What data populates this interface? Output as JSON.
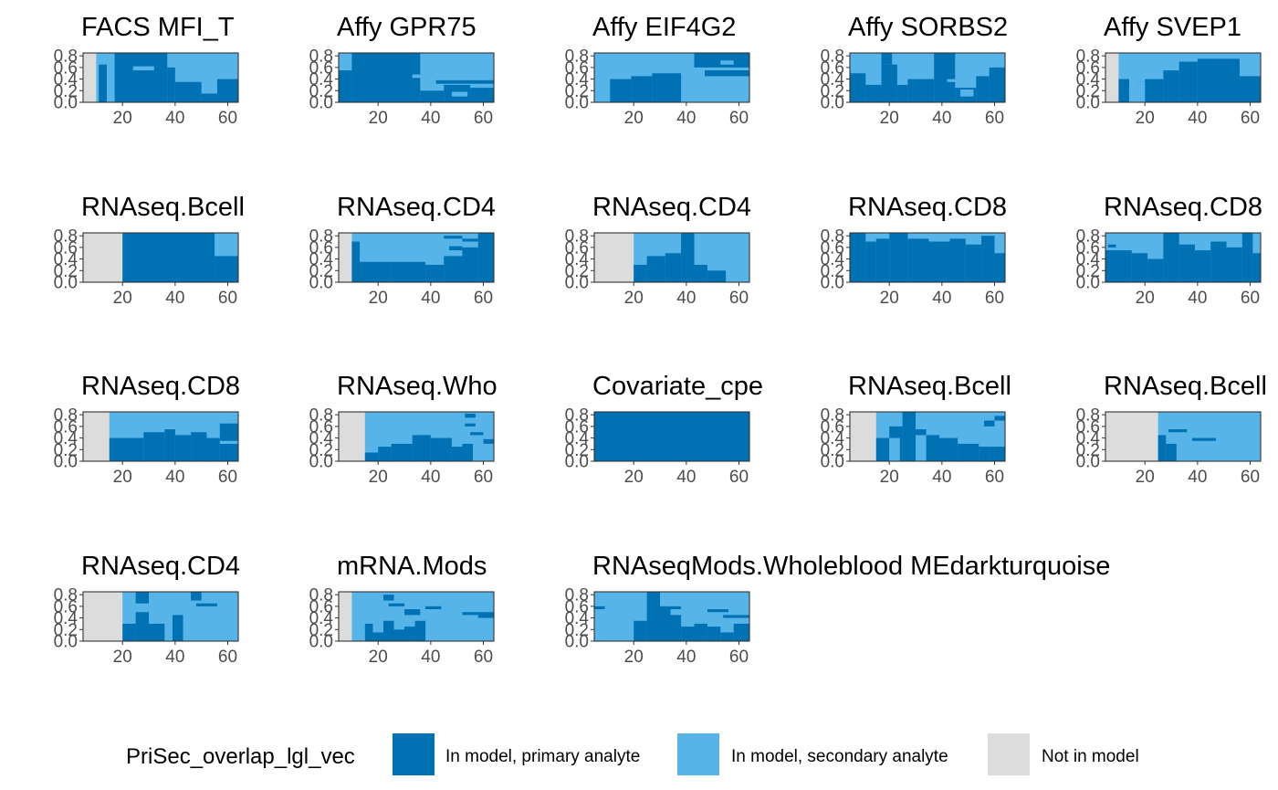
{
  "colors": {
    "primary": "#0071b3",
    "secondary": "#56b4e9",
    "not_in_model": "#dcdcdc"
  },
  "chart_data": {
    "type": "heatmap",
    "x_ticks": [
      20,
      40,
      60
    ],
    "y_ticks": [
      "0.0",
      "0.2",
      "0.4",
      "0.6",
      "0.8"
    ],
    "xlim": [
      5,
      64
    ],
    "ylim": [
      0,
      0.85
    ],
    "grid": false,
    "legend": {
      "title": "PriSec_overlap_lgl_vec",
      "position": "bottom",
      "entries": [
        {
          "key": "primary",
          "label": "In model, primary analyte"
        },
        {
          "key": "secondary",
          "label": "In model, secondary analyte"
        },
        {
          "key": "not",
          "label": "Not in model"
        }
      ]
    },
    "panels": [
      {
        "title": "FACS MFI_T",
        "bands": [
          {
            "key": "not",
            "x0": 5,
            "x1": 10
          }
        ],
        "cols": [
          [
            11,
            14,
            0.65
          ],
          [
            14,
            17,
            0.0
          ],
          [
            17,
            37,
            0.85
          ],
          [
            37,
            40,
            0.6
          ],
          [
            40,
            50,
            0.35
          ],
          [
            50,
            56,
            0.15
          ],
          [
            56,
            64,
            0.4
          ]
        ],
        "blocks": [
          [
            24,
            32,
            0.55,
            0.62,
            "secondary"
          ],
          [
            40,
            48,
            0.45,
            0.5,
            "secondary"
          ],
          [
            54,
            64,
            0.45,
            0.52,
            "secondary"
          ]
        ]
      },
      {
        "title": "Affy GPR75",
        "bands": [],
        "cols": [
          [
            5,
            10,
            0.55
          ],
          [
            10,
            36,
            0.85
          ],
          [
            36,
            45,
            0.2
          ],
          [
            45,
            55,
            0.3
          ],
          [
            55,
            64,
            0.25
          ]
        ],
        "blocks": [
          [
            33,
            37,
            0.42,
            0.48,
            "secondary"
          ],
          [
            48,
            54,
            0.1,
            0.18,
            "secondary"
          ],
          [
            42,
            64,
            0.32,
            0.38,
            "primary"
          ]
        ]
      },
      {
        "title": "Affy EIF4G2",
        "bands": [],
        "cols": [
          [
            5,
            11,
            0.0
          ],
          [
            11,
            19,
            0.4
          ],
          [
            19,
            27,
            0.45
          ],
          [
            27,
            38,
            0.5
          ],
          [
            38,
            48,
            0.0
          ],
          [
            48,
            64,
            0.0
          ]
        ],
        "blocks": [
          [
            43,
            64,
            0.6,
            0.85,
            "primary"
          ],
          [
            53,
            58,
            0.65,
            0.72,
            "secondary"
          ],
          [
            47,
            64,
            0.45,
            0.55,
            "primary"
          ],
          [
            55,
            64,
            0.5,
            0.55,
            "primary"
          ]
        ]
      },
      {
        "title": "Affy SORBS2",
        "bands": [],
        "cols": [
          [
            5,
            11,
            0.5
          ],
          [
            11,
            17,
            0.3
          ],
          [
            17,
            23,
            0.65
          ],
          [
            23,
            27,
            0.3
          ],
          [
            27,
            37,
            0.4
          ],
          [
            37,
            45,
            0.85
          ],
          [
            45,
            53,
            0.25
          ],
          [
            53,
            58,
            0.45
          ],
          [
            58,
            64,
            0.6
          ]
        ],
        "blocks": [
          [
            17,
            21,
            0.65,
            0.85,
            "primary"
          ],
          [
            42,
            46,
            0.35,
            0.4,
            "secondary"
          ],
          [
            47,
            52,
            0.1,
            0.22,
            "secondary"
          ]
        ]
      },
      {
        "title": "Affy SVEP1",
        "bands": [
          {
            "key": "not",
            "x0": 5,
            "x1": 10
          }
        ],
        "cols": [
          [
            10,
            14,
            0.4
          ],
          [
            14,
            17,
            0.0
          ],
          [
            17,
            20,
            0.35
          ],
          [
            20,
            27,
            0.4
          ],
          [
            27,
            33,
            0.55
          ],
          [
            33,
            40,
            0.7
          ],
          [
            40,
            47,
            0.75
          ],
          [
            47,
            56,
            0.75
          ],
          [
            56,
            64,
            0.45
          ]
        ],
        "blocks": [
          [
            14,
            17,
            0.0,
            0.25,
            "secondary"
          ],
          [
            17,
            20,
            0.0,
            0.35,
            "secondary"
          ]
        ]
      },
      {
        "title": "RNAseq.Bcell",
        "bands": [
          {
            "key": "not",
            "x0": 5,
            "x1": 20
          }
        ],
        "cols": [
          [
            20,
            55,
            0.85
          ],
          [
            55,
            64,
            0.45
          ]
        ],
        "blocks": []
      },
      {
        "title": "RNAseq.CD4",
        "bands": [
          {
            "key": "not",
            "x0": 5,
            "x1": 10
          }
        ],
        "cols": [
          [
            10,
            13,
            0.7
          ],
          [
            13,
            25,
            0.35
          ],
          [
            25,
            38,
            0.35
          ],
          [
            38,
            45,
            0.3
          ],
          [
            45,
            52,
            0.45
          ],
          [
            52,
            58,
            0.6
          ],
          [
            58,
            64,
            0.85
          ]
        ],
        "blocks": [
          [
            45,
            52,
            0.75,
            0.8,
            "primary"
          ],
          [
            47,
            52,
            0.55,
            0.62,
            "primary"
          ],
          [
            52,
            58,
            0.7,
            0.75,
            "primary"
          ]
        ]
      },
      {
        "title": "RNAseq.CD4",
        "bands": [
          {
            "key": "not",
            "x0": 5,
            "x1": 20
          }
        ],
        "cols": [
          [
            20,
            25,
            0.3
          ],
          [
            25,
            32,
            0.45
          ],
          [
            32,
            38,
            0.5
          ],
          [
            38,
            43,
            0.85
          ],
          [
            43,
            48,
            0.3
          ],
          [
            48,
            55,
            0.2
          ],
          [
            55,
            64,
            0.0
          ]
        ],
        "blocks": [
          [
            51,
            57,
            0.55,
            0.6,
            "secondary"
          ]
        ]
      },
      {
        "title": "RNAseq.CD8",
        "bands": [],
        "cols": [
          [
            5,
            11,
            0.85
          ],
          [
            11,
            15,
            0.7
          ],
          [
            15,
            20,
            0.75
          ],
          [
            20,
            27,
            0.85
          ],
          [
            27,
            35,
            0.75
          ],
          [
            35,
            43,
            0.7
          ],
          [
            43,
            49,
            0.75
          ],
          [
            49,
            55,
            0.65
          ],
          [
            55,
            60,
            0.8
          ],
          [
            60,
            64,
            0.5
          ]
        ],
        "blocks": []
      },
      {
        "title": "RNAseq.CD8",
        "bands": [],
        "cols": [
          [
            5,
            15,
            0.55
          ],
          [
            15,
            21,
            0.5
          ],
          [
            21,
            27,
            0.4
          ],
          [
            27,
            33,
            0.85
          ],
          [
            33,
            39,
            0.65
          ],
          [
            39,
            45,
            0.55
          ],
          [
            45,
            51,
            0.7
          ],
          [
            51,
            57,
            0.6
          ],
          [
            57,
            61,
            0.85
          ],
          [
            61,
            64,
            0.5
          ]
        ],
        "blocks": [
          [
            6,
            9,
            0.6,
            0.65,
            "primary"
          ]
        ]
      },
      {
        "title": "RNAseq.CD8",
        "bands": [
          {
            "key": "not",
            "x0": 5,
            "x1": 15
          }
        ],
        "cols": [
          [
            15,
            28,
            0.4
          ],
          [
            28,
            36,
            0.5
          ],
          [
            36,
            40,
            0.55
          ],
          [
            40,
            46,
            0.45
          ],
          [
            46,
            52,
            0.5
          ],
          [
            52,
            57,
            0.4
          ],
          [
            57,
            64,
            0.65
          ]
        ],
        "blocks": [
          [
            57,
            64,
            0.3,
            0.35,
            "secondary"
          ]
        ]
      },
      {
        "title": "RNAseq.Who",
        "bands": [
          {
            "key": "not",
            "x0": 5,
            "x1": 15
          }
        ],
        "cols": [
          [
            15,
            20,
            0.15
          ],
          [
            20,
            25,
            0.25
          ],
          [
            25,
            33,
            0.3
          ],
          [
            33,
            40,
            0.45
          ],
          [
            40,
            48,
            0.4
          ],
          [
            48,
            52,
            0.25
          ],
          [
            52,
            56,
            0.3
          ],
          [
            56,
            64,
            0.0
          ]
        ],
        "blocks": [
          [
            53,
            57,
            0.75,
            0.82,
            "primary"
          ],
          [
            53,
            57,
            0.6,
            0.65,
            "primary"
          ],
          [
            55,
            60,
            0.45,
            0.5,
            "primary"
          ],
          [
            60,
            64,
            0.3,
            0.38,
            "primary"
          ]
        ]
      },
      {
        "title": "Covariate_cpe",
        "bands": [],
        "cols": [
          [
            5,
            64,
            0.85
          ]
        ],
        "blocks": []
      },
      {
        "title": "RNAseq.Bcell",
        "bands": [
          {
            "key": "not",
            "x0": 5,
            "x1": 15
          }
        ],
        "cols": [
          [
            15,
            20,
            0.4
          ],
          [
            20,
            25,
            0.6
          ],
          [
            25,
            30,
            0.85
          ],
          [
            30,
            34,
            0.55
          ],
          [
            34,
            39,
            0.45
          ],
          [
            39,
            46,
            0.4
          ],
          [
            46,
            54,
            0.3
          ],
          [
            54,
            58,
            0.25
          ],
          [
            58,
            64,
            0.25
          ]
        ],
        "blocks": [
          [
            20,
            24,
            0.0,
            0.4,
            "secondary"
          ],
          [
            30,
            34,
            0.0,
            0.45,
            "secondary"
          ],
          [
            37,
            40,
            0.0,
            0.35,
            "primary"
          ],
          [
            56,
            60,
            0.6,
            0.7,
            "primary"
          ],
          [
            60,
            64,
            0.7,
            0.78,
            "primary"
          ]
        ]
      },
      {
        "title": "RNAseq.Bcell",
        "bands": [
          {
            "key": "not",
            "x0": 5,
            "x1": 25
          }
        ],
        "cols": [
          [
            25,
            28,
            0.45
          ],
          [
            28,
            64,
            0.0
          ]
        ],
        "blocks": [
          [
            28,
            32,
            0.0,
            0.3,
            "primary"
          ],
          [
            29,
            36,
            0.5,
            0.55,
            "primary"
          ],
          [
            38,
            47,
            0.35,
            0.4,
            "primary"
          ]
        ]
      },
      {
        "title": "RNAseq.CD4",
        "bands": [
          {
            "key": "not",
            "x0": 5,
            "x1": 20
          }
        ],
        "cols": [
          [
            20,
            25,
            0.3
          ],
          [
            25,
            30,
            0.5
          ],
          [
            30,
            36,
            0.3
          ],
          [
            36,
            39,
            0.0
          ],
          [
            39,
            43,
            0.45
          ],
          [
            43,
            64,
            0.0
          ]
        ],
        "blocks": [
          [
            25,
            30,
            0.65,
            0.85,
            "primary"
          ],
          [
            48,
            56,
            0.6,
            0.65,
            "primary"
          ],
          [
            46,
            50,
            0.7,
            0.85,
            "primary"
          ]
        ]
      },
      {
        "title": "mRNA.Mods",
        "bands": [
          {
            "key": "not",
            "x0": 5,
            "x1": 10
          }
        ],
        "cols": [
          [
            10,
            15,
            0.0
          ],
          [
            15,
            18,
            0.3
          ],
          [
            18,
            22,
            0.15
          ],
          [
            22,
            26,
            0.35
          ],
          [
            26,
            30,
            0.2
          ],
          [
            30,
            34,
            0.25
          ],
          [
            34,
            38,
            0.35
          ],
          [
            38,
            64,
            0.0
          ]
        ],
        "blocks": [
          [
            22,
            26,
            0.7,
            0.8,
            "primary"
          ],
          [
            24,
            30,
            0.6,
            0.65,
            "primary"
          ],
          [
            30,
            36,
            0.45,
            0.55,
            "primary"
          ],
          [
            38,
            44,
            0.55,
            0.6,
            "primary"
          ],
          [
            52,
            58,
            0.45,
            0.5,
            "primary"
          ],
          [
            58,
            64,
            0.4,
            0.5,
            "primary"
          ]
        ]
      },
      {
        "title": "RNAseqMods.Wholeblood MEdarkturquoise",
        "bands": [],
        "cols": [
          [
            5,
            20,
            0.0
          ],
          [
            20,
            25,
            0.35
          ],
          [
            25,
            30,
            0.85
          ],
          [
            30,
            38,
            0.6
          ],
          [
            38,
            43,
            0.25
          ],
          [
            43,
            48,
            0.3
          ],
          [
            48,
            53,
            0.25
          ],
          [
            53,
            58,
            0.15
          ],
          [
            58,
            64,
            0.3
          ]
        ],
        "blocks": [
          [
            5,
            9,
            0.55,
            0.6,
            "primary"
          ],
          [
            30,
            34,
            0.7,
            0.78,
            "secondary"
          ],
          [
            34,
            40,
            0.45,
            0.55,
            "secondary"
          ],
          [
            48,
            56,
            0.5,
            0.55,
            "primary"
          ],
          [
            54,
            64,
            0.4,
            0.45,
            "primary"
          ]
        ]
      }
    ]
  }
}
